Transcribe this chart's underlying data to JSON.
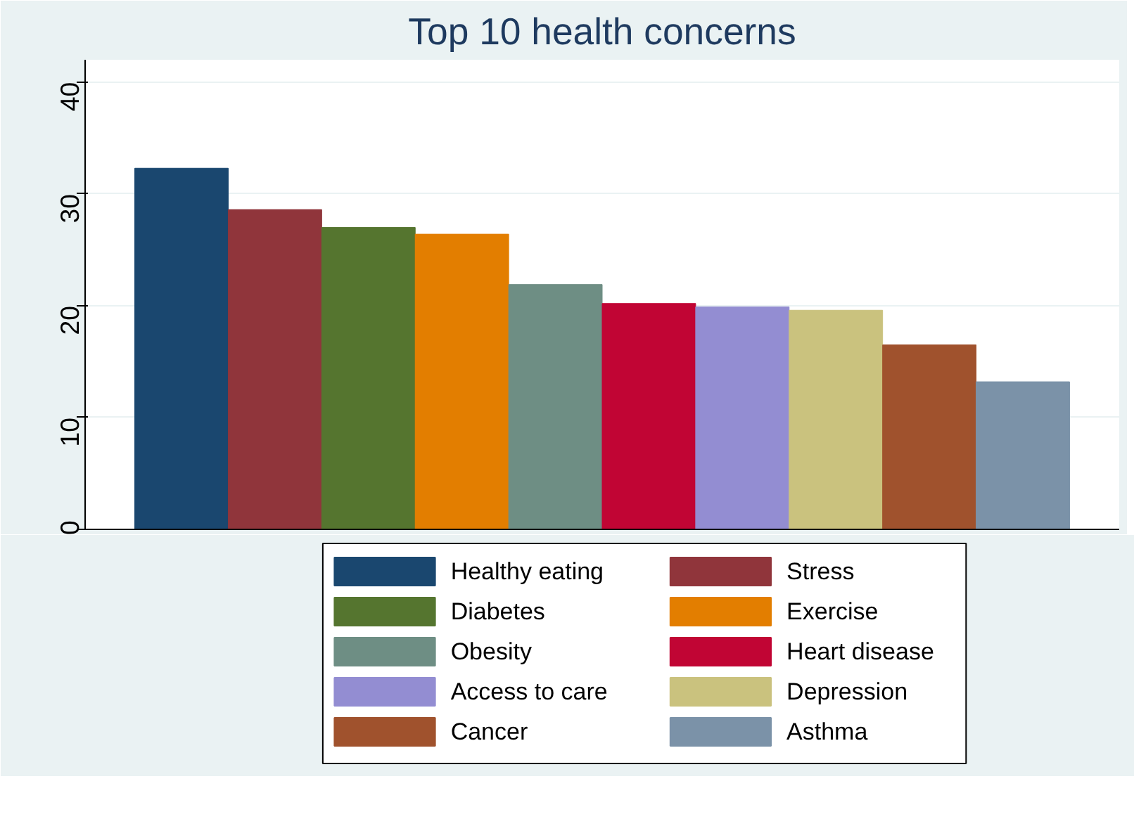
{
  "chart_data": {
    "type": "bar",
    "title": "Top 10 health concerns",
    "categories": [
      null
    ],
    "series": [
      {
        "name": "Healthy eating",
        "color": "#1a476f",
        "values": [
          32.3
        ]
      },
      {
        "name": "Stress",
        "color": "#90353b",
        "values": [
          28.6
        ]
      },
      {
        "name": "Diabetes",
        "color": "#55752f",
        "values": [
          27.0
        ]
      },
      {
        "name": "Exercise",
        "color": "#e37e00",
        "values": [
          26.4
        ]
      },
      {
        "name": "Obesity",
        "color": "#6e8e84",
        "values": [
          21.9
        ]
      },
      {
        "name": "Heart disease",
        "color": "#c10534",
        "values": [
          20.2
        ]
      },
      {
        "name": "Access to care",
        "color": "#938dd2",
        "values": [
          19.9
        ]
      },
      {
        "name": "Depression",
        "color": "#cac27e",
        "values": [
          19.6
        ]
      },
      {
        "name": "Cancer",
        "color": "#a0522d",
        "values": [
          16.5
        ]
      },
      {
        "name": "Asthma",
        "color": "#7b92a8",
        "values": [
          13.2
        ]
      }
    ],
    "ylim": [
      0,
      42
    ],
    "yticks": [
      0,
      10,
      20,
      30,
      40
    ],
    "grid": "y",
    "legend": "bottom",
    "tick_labels": "y"
  }
}
